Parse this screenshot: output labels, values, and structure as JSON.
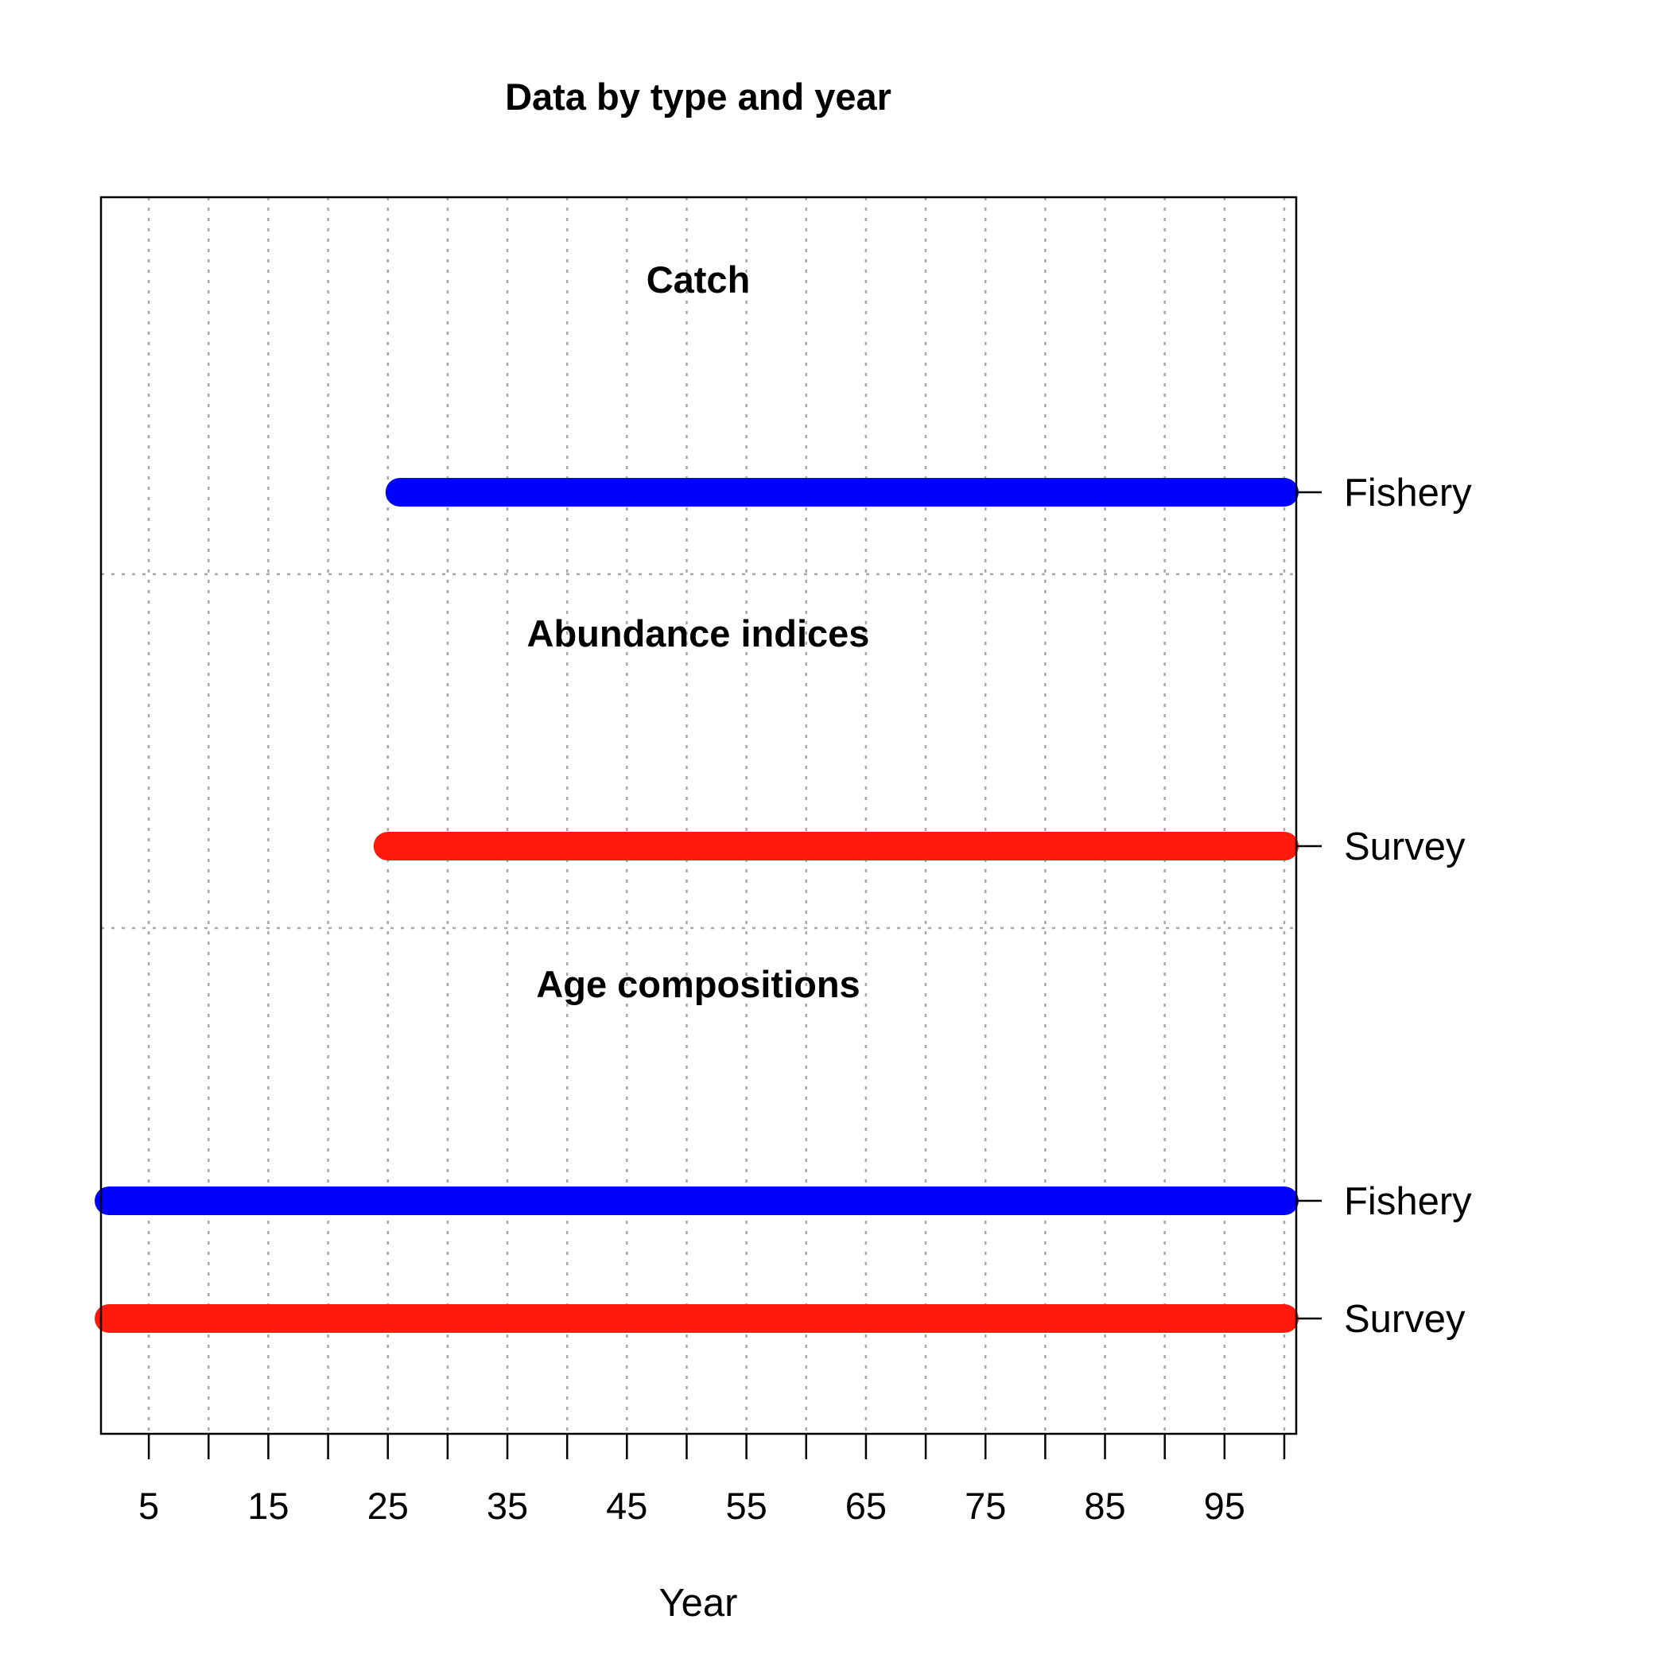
{
  "chart_data": {
    "type": "bar",
    "subtype": "timeline",
    "title": "Data by type and year",
    "xlabel": "Year",
    "ylabel": "",
    "xlim": [
      1,
      101
    ],
    "x_ticks": [
      5,
      10,
      15,
      20,
      25,
      30,
      35,
      40,
      45,
      50,
      55,
      60,
      65,
      70,
      75,
      80,
      85,
      90,
      95,
      100
    ],
    "x_tick_labels": [
      "5",
      "",
      "15",
      "",
      "25",
      "",
      "35",
      "",
      "45",
      "",
      "55",
      "",
      "65",
      "",
      "75",
      "",
      "85",
      "",
      "95",
      ""
    ],
    "grid": true,
    "colors": {
      "Fishery": "#0000FF",
      "Survey": "#FF1A0D"
    },
    "groups": [
      {
        "label": "Catch",
        "series": [
          {
            "name": "Fishery",
            "start": 26,
            "end": 100,
            "color": "#0000FF"
          }
        ]
      },
      {
        "label": "Abundance indices",
        "series": [
          {
            "name": "Survey",
            "start": 25,
            "end": 100,
            "color": "#FF1A0D"
          }
        ]
      },
      {
        "label": "Age compositions",
        "series": [
          {
            "name": "Fishery",
            "start": 1,
            "end": 100,
            "color": "#0000FF"
          },
          {
            "name": "Survey",
            "start": 1,
            "end": 100,
            "color": "#FF1A0D"
          }
        ]
      }
    ]
  }
}
